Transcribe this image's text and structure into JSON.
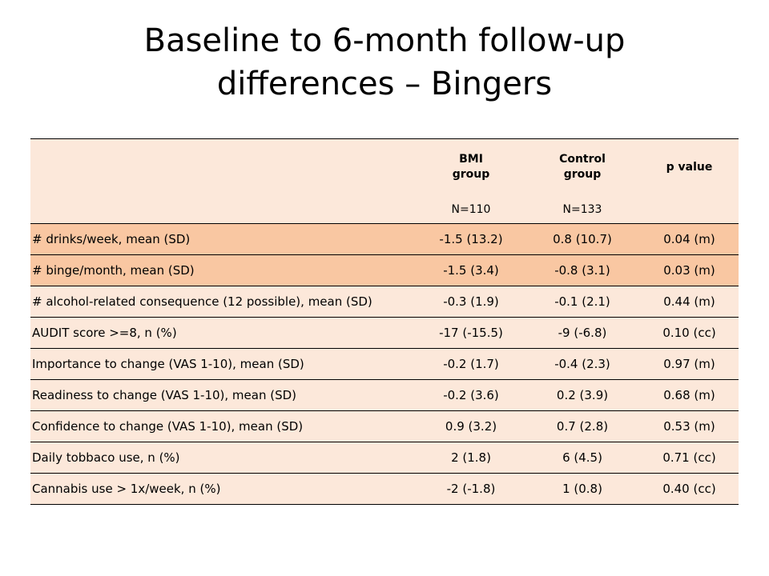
{
  "title": {
    "line1": "Baseline to 6-month follow-up",
    "line2": "differences – Bingers"
  },
  "table": {
    "header": {
      "bmi_line1": "BMI",
      "bmi_line2": "group",
      "control_line1": "Control",
      "control_line2": "group",
      "p_value": "p value",
      "bmi_n": "N=110",
      "control_n": "N=133"
    },
    "rows": [
      {
        "label": "# drinks/week, mean (SD)",
        "bmi": "-1.5 (13.2)",
        "control": "0.8 (10.7)",
        "p": "0.04 (m)"
      },
      {
        "label": "# binge/month, mean (SD)",
        "bmi": "-1.5 (3.4)",
        "control": "-0.8 (3.1)",
        "p": "0.03 (m)"
      },
      {
        "label": "# alcohol-related consequence (12 possible), mean (SD)",
        "bmi": "-0.3 (1.9)",
        "control": "-0.1 (2.1)",
        "p": "0.44 (m)"
      },
      {
        "label": "AUDIT score >=8, n (%)",
        "bmi": "-17 (-15.5)",
        "control": "-9 (-6.8)",
        "p": "0.10 (cc)"
      },
      {
        "label": "Importance to change (VAS 1-10), mean (SD)",
        "bmi": "-0.2 (1.7)",
        "control": "-0.4 (2.3)",
        "p": "0.97 (m)"
      },
      {
        "label": "Readiness to change (VAS 1-10), mean (SD)",
        "bmi": "-0.2 (3.6)",
        "control": "0.2 (3.9)",
        "p": "0.68 (m)"
      },
      {
        "label": "Confidence to change (VAS 1-10), mean (SD)",
        "bmi": "0.9 (3.2)",
        "control": "0.7 (2.8)",
        "p": "0.53 (m)"
      },
      {
        "label": "Daily tobbaco use, n (%)",
        "bmi": "2 (1.8)",
        "control": "6 (4.5)",
        "p": "0.71 (cc)"
      },
      {
        "label": "Cannabis use > 1x/week, n (%)",
        "bmi": "-2 (-1.8)",
        "control": "1 (0.8)",
        "p": "0.40 (cc)"
      }
    ]
  },
  "colors": {
    "highlight_row": "#f9c7a2",
    "normal_row": "#fce8da"
  }
}
